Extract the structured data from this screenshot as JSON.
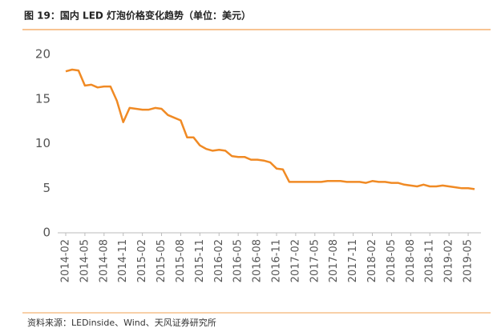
{
  "chart_data": {
    "type": "line",
    "title": "图 19：国内 LED 灯泡价格变化趋势（单位：美元）",
    "source": "资料来源：LEDinside、Wind、天风证券研究所",
    "categories": [
      "2014-02",
      null,
      null,
      "2014-05",
      null,
      null,
      "2014-08",
      null,
      null,
      "2014-11",
      null,
      null,
      "2015-02",
      null,
      null,
      "2015-05",
      null,
      null,
      "2015-08",
      null,
      null,
      "2015-11",
      null,
      null,
      "2016-02",
      null,
      null,
      "2016-05",
      null,
      null,
      "2016-08",
      null,
      null,
      "2016-11",
      null,
      null,
      "2017-02",
      null,
      null,
      "2017-05",
      null,
      null,
      "2017-08",
      null,
      null,
      "2017-11",
      null,
      null,
      "2018-02",
      null,
      null,
      "2018-05",
      null,
      null,
      "2018-08",
      null,
      null,
      "2018-11",
      null,
      null,
      "2019-02",
      null,
      null,
      "2019-05",
      null
    ],
    "values": [
      18.1,
      18.3,
      18.2,
      16.5,
      16.6,
      16.3,
      16.4,
      16.4,
      14.8,
      12.4,
      14.0,
      13.9,
      13.8,
      13.8,
      14.0,
      13.9,
      13.2,
      12.9,
      12.6,
      10.7,
      10.7,
      9.8,
      9.4,
      9.2,
      9.3,
      9.2,
      8.6,
      8.5,
      8.5,
      8.2,
      8.2,
      8.1,
      7.9,
      7.2,
      7.1,
      5.7,
      5.7,
      5.7,
      5.7,
      5.7,
      5.7,
      5.8,
      5.8,
      5.8,
      5.7,
      5.7,
      5.7,
      5.6,
      5.8,
      5.7,
      5.7,
      5.6,
      5.6,
      5.4,
      5.3,
      5.2,
      5.4,
      5.2,
      5.2,
      5.3,
      5.2,
      5.1,
      5.0,
      5.0,
      4.9
    ],
    "color": "#f08a24",
    "ylim": [
      0,
      20
    ],
    "yticks": [
      0,
      5,
      10,
      15,
      20
    ],
    "grid": false
  }
}
